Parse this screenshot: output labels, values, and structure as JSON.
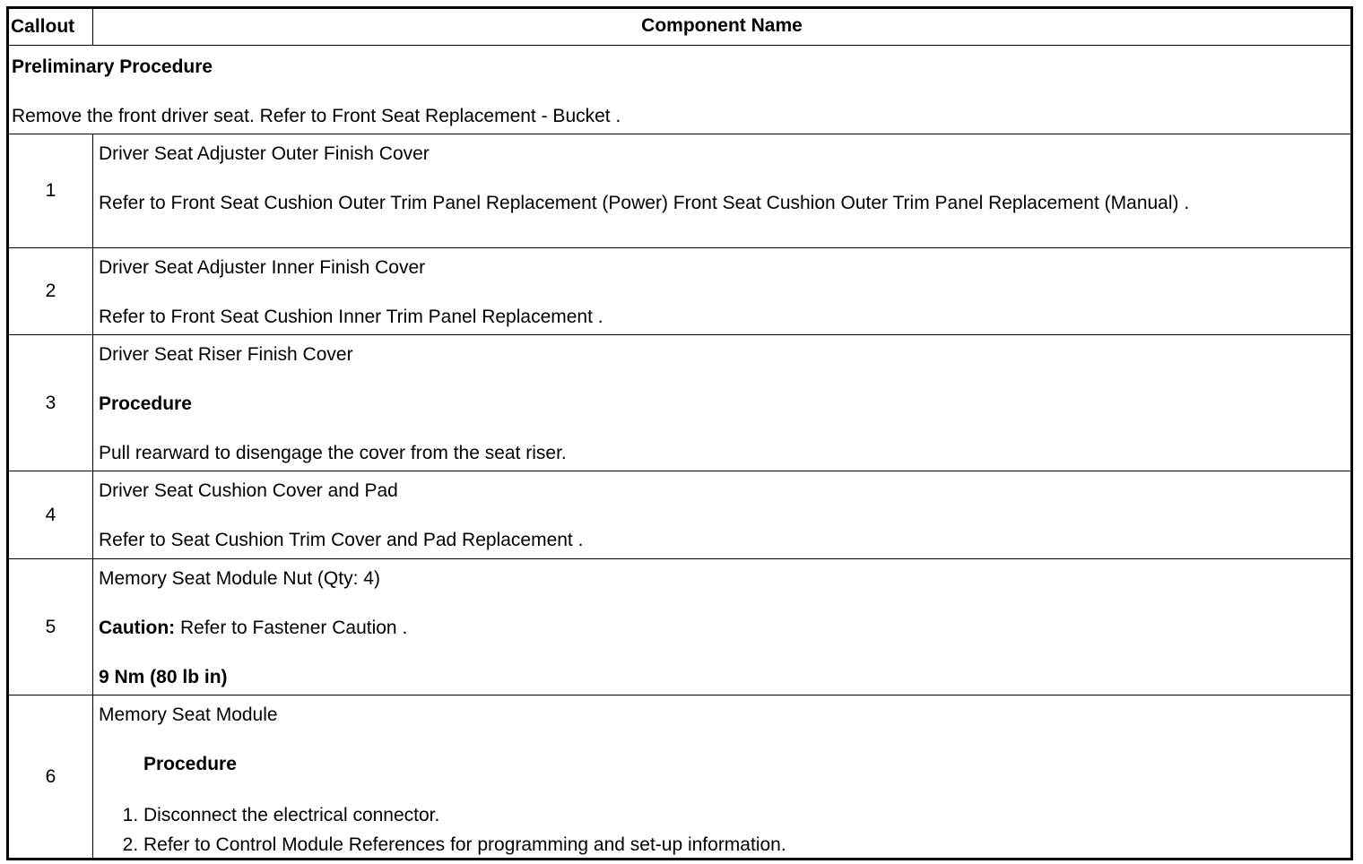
{
  "header": {
    "callout": "Callout",
    "component_name": "Component Name"
  },
  "preliminary": {
    "title": "Preliminary Procedure",
    "text": "Remove the front driver seat. Refer to Front Seat Replacement - Bucket ."
  },
  "rows": [
    {
      "callout": "1",
      "name": "Driver Seat Adjuster Outer Finish Cover",
      "text": "Refer to Front Seat Cushion Outer Trim Panel Replacement (Power) Front Seat Cushion Outer Trim Panel Replacement (Manual) ."
    },
    {
      "callout": "2",
      "name": "Driver Seat Adjuster Inner Finish Cover",
      "text": "Refer to Front Seat Cushion Inner Trim Panel Replacement ."
    },
    {
      "callout": "3",
      "name": "Driver Seat Riser Finish Cover",
      "procedure_label": "Procedure",
      "text": "Pull rearward to disengage the cover from the seat riser."
    },
    {
      "callout": "4",
      "name": "Driver Seat Cushion Cover and Pad",
      "text": "Refer to Seat Cushion Trim Cover and Pad Replacement ."
    },
    {
      "callout": "5",
      "name": "Memory Seat Module Nut (Qty: 4)",
      "caution_label": "Caution:",
      "text": " Refer to Fastener Caution .",
      "torque": "9 Nm (80 lb in)"
    },
    {
      "callout": "6",
      "name": "Memory Seat Module",
      "procedure_label": "Procedure",
      "steps": [
        "Disconnect the electrical connector.",
        "Refer to Control Module References for programming and set-up information."
      ]
    }
  ]
}
